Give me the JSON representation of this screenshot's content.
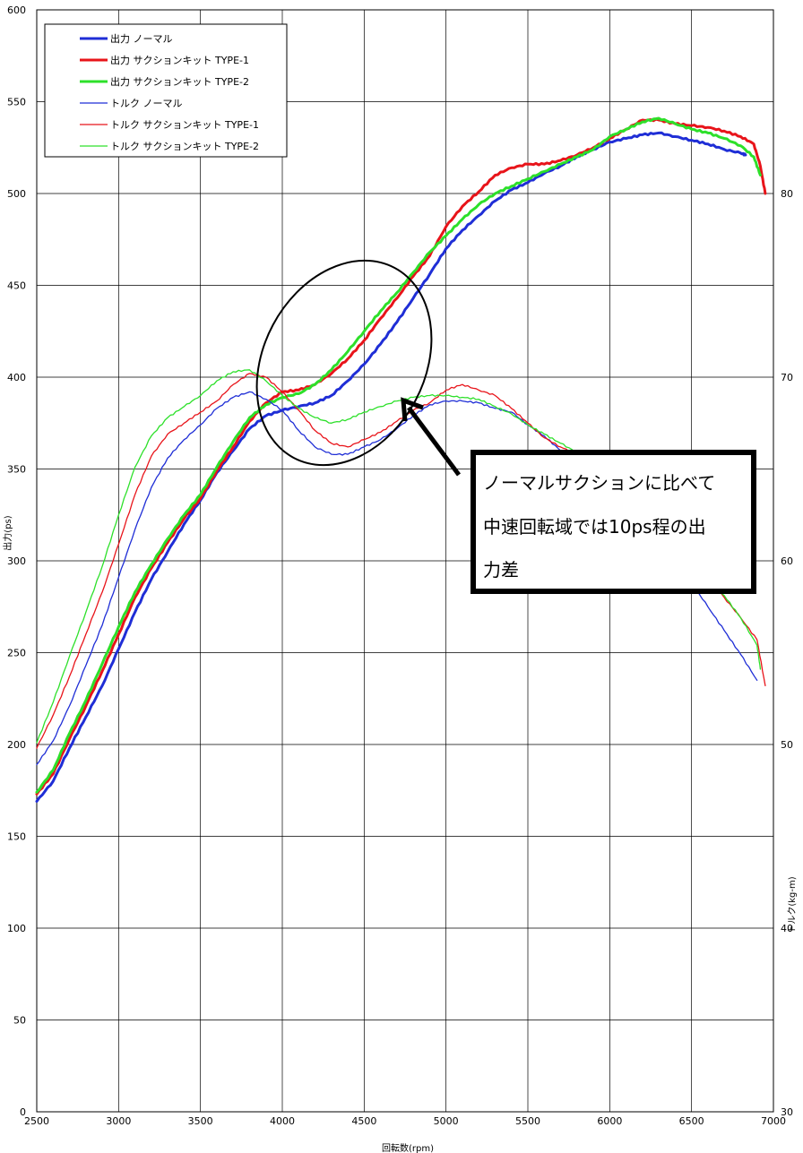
{
  "chart_data": {
    "type": "line",
    "xlabel": "回転数(rpm)",
    "ylabel": "出力(ps)",
    "y2label": "トルク(kg-m)",
    "xlim": [
      2500,
      7000
    ],
    "ylim": [
      0,
      600
    ],
    "y2lim": [
      30,
      90
    ],
    "x_ticks": [
      "2500",
      "3000",
      "3500",
      "4000",
      "4500",
      "5000",
      "5500",
      "6000",
      "6500",
      "7000"
    ],
    "y_ticks": [
      "0",
      "50",
      "100",
      "150",
      "200",
      "250",
      "300",
      "350",
      "400",
      "450",
      "500",
      "550",
      "600"
    ],
    "y2_ticks": [
      "30",
      "40",
      "50",
      "60",
      "70",
      "80"
    ],
    "grid": true,
    "legend_position": "top-left",
    "series": [
      {
        "name": "出力 ノーマル",
        "axis": "left",
        "color": "#1f2ed6",
        "width": 3,
        "points": [
          [
            2500,
            169
          ],
          [
            2600,
            180
          ],
          [
            2700,
            198
          ],
          [
            2800,
            215
          ],
          [
            2900,
            232
          ],
          [
            3000,
            252
          ],
          [
            3100,
            272
          ],
          [
            3200,
            290
          ],
          [
            3300,
            305
          ],
          [
            3400,
            320
          ],
          [
            3500,
            333
          ],
          [
            3600,
            348
          ],
          [
            3700,
            360
          ],
          [
            3800,
            372
          ],
          [
            3900,
            379
          ],
          [
            4000,
            382
          ],
          [
            4100,
            384
          ],
          [
            4200,
            386
          ],
          [
            4300,
            390
          ],
          [
            4400,
            398
          ],
          [
            4500,
            407
          ],
          [
            4600,
            418
          ],
          [
            4700,
            430
          ],
          [
            4800,
            443
          ],
          [
            4900,
            456
          ],
          [
            5000,
            470
          ],
          [
            5100,
            480
          ],
          [
            5200,
            488
          ],
          [
            5300,
            496
          ],
          [
            5400,
            502
          ],
          [
            5500,
            506
          ],
          [
            5600,
            511
          ],
          [
            5700,
            515
          ],
          [
            5800,
            520
          ],
          [
            5900,
            524
          ],
          [
            6000,
            528
          ],
          [
            6100,
            530
          ],
          [
            6200,
            532
          ],
          [
            6300,
            533
          ],
          [
            6400,
            531
          ],
          [
            6500,
            529
          ],
          [
            6600,
            527
          ],
          [
            6700,
            524
          ],
          [
            6800,
            522
          ],
          [
            6830,
            521
          ]
        ]
      },
      {
        "name": "出力 サクションキット TYPE-1",
        "axis": "left",
        "color": "#e8141a",
        "width": 3,
        "points": [
          [
            2500,
            173
          ],
          [
            2600,
            184
          ],
          [
            2700,
            203
          ],
          [
            2800,
            221
          ],
          [
            2900,
            240
          ],
          [
            3000,
            260
          ],
          [
            3100,
            280
          ],
          [
            3200,
            296
          ],
          [
            3300,
            310
          ],
          [
            3400,
            323
          ],
          [
            3500,
            334
          ],
          [
            3600,
            349
          ],
          [
            3700,
            362
          ],
          [
            3800,
            376
          ],
          [
            3900,
            386
          ],
          [
            4000,
            392
          ],
          [
            4100,
            393
          ],
          [
            4200,
            396
          ],
          [
            4300,
            402
          ],
          [
            4400,
            410
          ],
          [
            4500,
            420
          ],
          [
            4600,
            432
          ],
          [
            4700,
            443
          ],
          [
            4800,
            455
          ],
          [
            4900,
            466
          ],
          [
            5000,
            482
          ],
          [
            5100,
            493
          ],
          [
            5200,
            501
          ],
          [
            5300,
            510
          ],
          [
            5400,
            514
          ],
          [
            5500,
            516
          ],
          [
            5600,
            516
          ],
          [
            5700,
            518
          ],
          [
            5800,
            521
          ],
          [
            5900,
            525
          ],
          [
            6000,
            530
          ],
          [
            6100,
            535
          ],
          [
            6200,
            540
          ],
          [
            6300,
            540
          ],
          [
            6400,
            538
          ],
          [
            6500,
            537
          ],
          [
            6600,
            536
          ],
          [
            6700,
            534
          ],
          [
            6800,
            531
          ],
          [
            6880,
            527
          ],
          [
            6920,
            515
          ],
          [
            6950,
            500
          ]
        ]
      },
      {
        "name": "出力 サクションキット TYPE-2",
        "axis": "left",
        "color": "#2de02a",
        "width": 3,
        "points": [
          [
            2500,
            174
          ],
          [
            2600,
            186
          ],
          [
            2700,
            206
          ],
          [
            2800,
            224
          ],
          [
            2900,
            244
          ],
          [
            3000,
            264
          ],
          [
            3100,
            283
          ],
          [
            3200,
            298
          ],
          [
            3300,
            312
          ],
          [
            3400,
            325
          ],
          [
            3500,
            336
          ],
          [
            3600,
            351
          ],
          [
            3700,
            365
          ],
          [
            3800,
            378
          ],
          [
            3900,
            385
          ],
          [
            4000,
            389
          ],
          [
            4100,
            391
          ],
          [
            4200,
            396
          ],
          [
            4300,
            404
          ],
          [
            4400,
            414
          ],
          [
            4500,
            425
          ],
          [
            4600,
            436
          ],
          [
            4700,
            446
          ],
          [
            4800,
            457
          ],
          [
            4900,
            468
          ],
          [
            5000,
            477
          ],
          [
            5100,
            486
          ],
          [
            5200,
            494
          ],
          [
            5300,
            500
          ],
          [
            5400,
            504
          ],
          [
            5500,
            508
          ],
          [
            5600,
            512
          ],
          [
            5700,
            516
          ],
          [
            5800,
            520
          ],
          [
            5900,
            524
          ],
          [
            6000,
            531
          ],
          [
            6100,
            535
          ],
          [
            6200,
            539
          ],
          [
            6300,
            541
          ],
          [
            6400,
            538
          ],
          [
            6500,
            535
          ],
          [
            6600,
            533
          ],
          [
            6700,
            530
          ],
          [
            6800,
            526
          ],
          [
            6880,
            520
          ],
          [
            6920,
            510
          ]
        ]
      },
      {
        "name": "トルク ノーマル",
        "axis": "right",
        "color": "#1f2ed6",
        "width": 1.3,
        "points": [
          [
            2500,
            48.9
          ],
          [
            2600,
            50.2
          ],
          [
            2700,
            52.1
          ],
          [
            2800,
            54.3
          ],
          [
            2900,
            56.5
          ],
          [
            3000,
            59.1
          ],
          [
            3100,
            61.7
          ],
          [
            3200,
            64.0
          ],
          [
            3300,
            65.6
          ],
          [
            3400,
            66.6
          ],
          [
            3500,
            67.4
          ],
          [
            3600,
            68.3
          ],
          [
            3700,
            68.9
          ],
          [
            3800,
            69.2
          ],
          [
            3900,
            68.8
          ],
          [
            4000,
            68.2
          ],
          [
            4100,
            67.1
          ],
          [
            4200,
            66.2
          ],
          [
            4300,
            65.8
          ],
          [
            4400,
            65.8
          ],
          [
            4500,
            66.2
          ],
          [
            4600,
            66.6
          ],
          [
            4700,
            67.2
          ],
          [
            4800,
            67.9
          ],
          [
            4900,
            68.5
          ],
          [
            5000,
            68.7
          ],
          [
            5100,
            68.7
          ],
          [
            5200,
            68.6
          ],
          [
            5300,
            68.3
          ],
          [
            5400,
            68.1
          ],
          [
            5500,
            67.4
          ],
          [
            5600,
            66.8
          ],
          [
            5700,
            66.0
          ],
          [
            5800,
            65.7
          ],
          [
            5900,
            65.1
          ],
          [
            6000,
            64.5
          ],
          [
            6100,
            63.5
          ],
          [
            6200,
            62.3
          ],
          [
            6300,
            61.1
          ],
          [
            6400,
            60.0
          ],
          [
            6500,
            58.8
          ],
          [
            6600,
            57.5
          ],
          [
            6700,
            56.2
          ],
          [
            6800,
            54.9
          ],
          [
            6900,
            53.5
          ]
        ]
      },
      {
        "name": "トルク サクションキット TYPE-1",
        "axis": "right",
        "color": "#e8141a",
        "width": 1.3,
        "points": [
          [
            2500,
            49.8
          ],
          [
            2600,
            51.6
          ],
          [
            2700,
            53.7
          ],
          [
            2800,
            56.0
          ],
          [
            2900,
            58.3
          ],
          [
            3000,
            60.9
          ],
          [
            3100,
            63.6
          ],
          [
            3200,
            65.7
          ],
          [
            3300,
            66.9
          ],
          [
            3400,
            67.5
          ],
          [
            3500,
            68.1
          ],
          [
            3600,
            68.7
          ],
          [
            3700,
            69.6
          ],
          [
            3800,
            70.2
          ],
          [
            3900,
            70.0
          ],
          [
            4000,
            69.2
          ],
          [
            4100,
            68.2
          ],
          [
            4200,
            67.1
          ],
          [
            4300,
            66.4
          ],
          [
            4400,
            66.2
          ],
          [
            4500,
            66.6
          ],
          [
            4600,
            67.0
          ],
          [
            4700,
            67.6
          ],
          [
            4800,
            68.2
          ],
          [
            4900,
            68.6
          ],
          [
            5000,
            69.3
          ],
          [
            5100,
            69.6
          ],
          [
            5200,
            69.3
          ],
          [
            5300,
            69.0
          ],
          [
            5400,
            68.3
          ],
          [
            5500,
            67.5
          ],
          [
            5600,
            66.7
          ],
          [
            5700,
            66.2
          ],
          [
            5800,
            65.8
          ],
          [
            5900,
            65.4
          ],
          [
            6000,
            65.0
          ],
          [
            6100,
            64.6
          ],
          [
            6200,
            63.8
          ],
          [
            6300,
            62.6
          ],
          [
            6400,
            61.5
          ],
          [
            6500,
            60.3
          ],
          [
            6600,
            59.1
          ],
          [
            6700,
            58.0
          ],
          [
            6800,
            56.9
          ],
          [
            6900,
            55.7
          ],
          [
            6950,
            53.2
          ]
        ]
      },
      {
        "name": "トルク サクションキット TYPE-2",
        "axis": "right",
        "color": "#2de02a",
        "width": 1.3,
        "points": [
          [
            2500,
            50.1
          ],
          [
            2600,
            52.3
          ],
          [
            2700,
            54.8
          ],
          [
            2800,
            57.2
          ],
          [
            2900,
            59.7
          ],
          [
            3000,
            62.5
          ],
          [
            3100,
            65.1
          ],
          [
            3200,
            66.8
          ],
          [
            3300,
            67.8
          ],
          [
            3400,
            68.4
          ],
          [
            3500,
            69.0
          ],
          [
            3600,
            69.8
          ],
          [
            3700,
            70.3
          ],
          [
            3800,
            70.4
          ],
          [
            3900,
            69.8
          ],
          [
            4000,
            69.0
          ],
          [
            4100,
            68.3
          ],
          [
            4200,
            67.8
          ],
          [
            4300,
            67.5
          ],
          [
            4400,
            67.7
          ],
          [
            4500,
            68.1
          ],
          [
            4600,
            68.4
          ],
          [
            4700,
            68.7
          ],
          [
            4800,
            68.9
          ],
          [
            4900,
            69.0
          ],
          [
            5000,
            69.0
          ],
          [
            5100,
            68.9
          ],
          [
            5200,
            68.8
          ],
          [
            5300,
            68.4
          ],
          [
            5400,
            68.0
          ],
          [
            5500,
            67.4
          ],
          [
            5600,
            66.9
          ],
          [
            5700,
            66.4
          ],
          [
            5800,
            65.9
          ],
          [
            5900,
            65.5
          ],
          [
            6000,
            65.1
          ],
          [
            6100,
            64.5
          ],
          [
            6200,
            63.5
          ],
          [
            6300,
            62.4
          ],
          [
            6400,
            61.3
          ],
          [
            6500,
            60.2
          ],
          [
            6600,
            59.1
          ],
          [
            6700,
            58.1
          ],
          [
            6800,
            56.9
          ],
          [
            6900,
            55.4
          ],
          [
            6920,
            54.1
          ]
        ]
      }
    ],
    "annotation": {
      "text": "ノーマルサクションに比べて中速回転域では10ps程の出力差",
      "lines": [
        "ノーマルサクションに比べて",
        "中速回転域では10ps程の出",
        "力差"
      ]
    }
  }
}
